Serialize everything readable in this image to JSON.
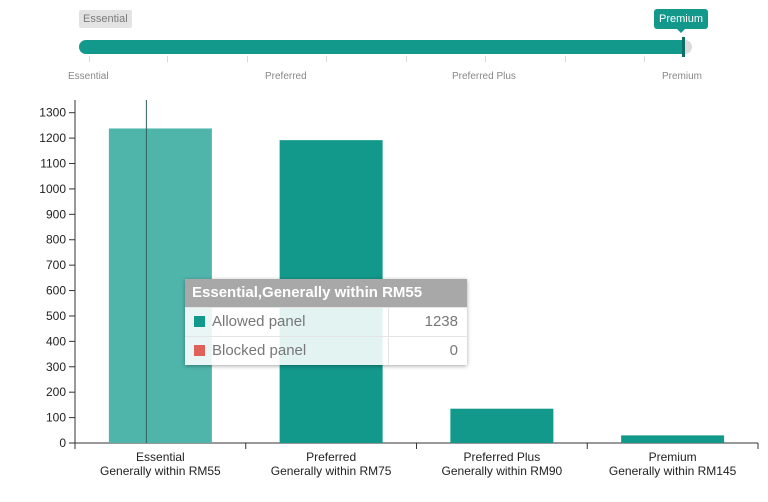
{
  "slider": {
    "min_badge": "Essential",
    "max_badge": "Premium",
    "value_fraction": 1.0,
    "ticks": [
      "Essential",
      "Preferred",
      "Preferred Plus",
      "Premium"
    ]
  },
  "chart_data": {
    "type": "bar",
    "categories": [
      [
        "Essential",
        "Generally within RM55"
      ],
      [
        "Preferred",
        "Generally within RM75"
      ],
      [
        "Preferred Plus",
        "Generally within RM90"
      ],
      [
        "Premium",
        "Generally within RM145"
      ]
    ],
    "series": [
      {
        "name": "Allowed panel",
        "values": [
          1238,
          1192,
          135,
          30
        ],
        "color": "#12998b"
      },
      {
        "name": "Blocked panel",
        "values": [
          0,
          0,
          0,
          0
        ],
        "color": "#e0605a"
      }
    ],
    "ylim": [
      0,
      1350
    ],
    "yticks": [
      0,
      100,
      200,
      300,
      400,
      500,
      600,
      700,
      800,
      900,
      1000,
      1100,
      1200,
      1300
    ],
    "highlight_index": 0,
    "highlight_color": "#4fb5ab"
  },
  "tooltip": {
    "title": "Essential,Generally within RM55",
    "rows": [
      {
        "label": "Allowed panel",
        "value": "1238",
        "color": "#12998b"
      },
      {
        "label": "Blocked panel",
        "value": "0",
        "color": "#e0605a"
      }
    ]
  }
}
